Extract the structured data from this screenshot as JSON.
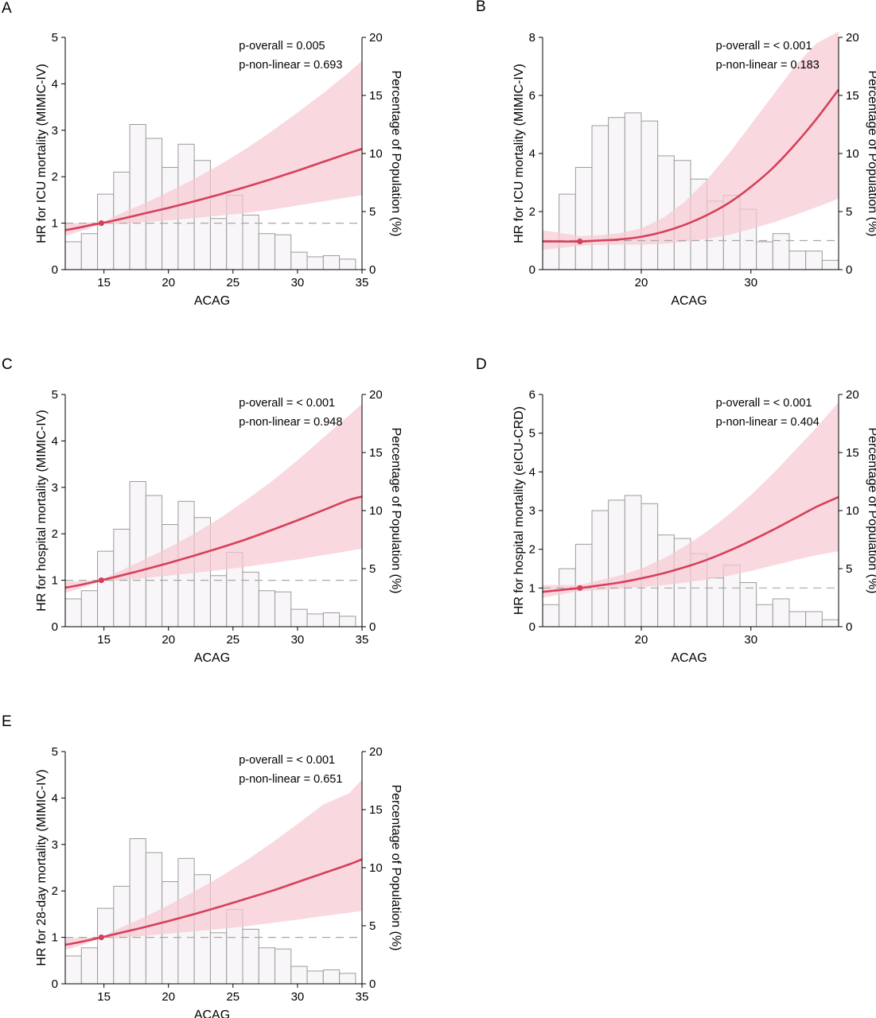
{
  "colors": {
    "curve": "#d6405a",
    "ci_band": "#f7c9d2",
    "bar_fill": "#f8f6f8",
    "bar_edge": "#9c9c9c",
    "reference": "#a8a8a8"
  },
  "chart_data": [
    {
      "panel": "A",
      "type": "bar",
      "title": "",
      "xlabel": "ACAG",
      "ylabel": "HR for ICU mortality (MIMIC-IV)",
      "y2label": "Percentage of Population (%)",
      "xlim": [
        12,
        35
      ],
      "ylim": [
        0,
        5
      ],
      "y2lim": [
        0,
        20
      ],
      "xticks": [
        15,
        20,
        25,
        30,
        35
      ],
      "yticks": [
        0,
        1,
        2,
        3,
        4,
        5
      ],
      "y2ticks": [
        0,
        5,
        10,
        15,
        20
      ],
      "annotations": [
        "p-overall = 0.005",
        "p-non-linear = 0.693"
      ],
      "reference_hr": 1,
      "ref_point": [
        14.8,
        1.0
      ],
      "histogram": {
        "bin_width": 1.25,
        "bin_start": 12,
        "percent": [
          2.4,
          3.1,
          6.5,
          8.4,
          12.5,
          11.3,
          8.8,
          10.8,
          9.4,
          4.4,
          6.4,
          4.7,
          3.1,
          3.0,
          1.5,
          1.1,
          1.2,
          0.9
        ]
      },
      "hr_curve": {
        "x": [
          12,
          13,
          14,
          14.8,
          16,
          18,
          20,
          22,
          24,
          26,
          28,
          30,
          32,
          34,
          35
        ],
        "hr": [
          0.85,
          0.9,
          0.96,
          1.0,
          1.07,
          1.2,
          1.33,
          1.47,
          1.62,
          1.78,
          1.95,
          2.13,
          2.32,
          2.51,
          2.6
        ],
        "lower": [
          0.73,
          0.81,
          0.9,
          1.0,
          0.98,
          1.02,
          1.06,
          1.11,
          1.16,
          1.22,
          1.29,
          1.38,
          1.47,
          1.56,
          1.6
        ],
        "upper": [
          1.0,
          1.0,
          1.02,
          1.0,
          1.17,
          1.41,
          1.67,
          1.95,
          2.26,
          2.6,
          2.98,
          3.38,
          3.8,
          4.25,
          4.5
        ]
      }
    },
    {
      "panel": "B",
      "type": "bar",
      "title": "",
      "xlabel": "ACAG",
      "ylabel": "HR for ICU mortality (MIMIC-IV)",
      "y2label": "Percentage of Population (%)",
      "xlim": [
        11,
        38
      ],
      "ylim": [
        0,
        8
      ],
      "y2lim": [
        0,
        20
      ],
      "xticks": [
        20,
        30
      ],
      "yticks": [
        0,
        2,
        4,
        6,
        8
      ],
      "y2ticks": [
        0,
        5,
        10,
        15,
        20
      ],
      "annotations": [
        "p-overall = < 0.001",
        "p-non-linear = 0.183"
      ],
      "reference_hr": 1,
      "ref_point": [
        14.4,
        0.97
      ],
      "histogram": {
        "bin_width": 1.5,
        "bin_start": 11,
        "percent": [
          2.5,
          6.5,
          8.8,
          12.4,
          13.1,
          13.5,
          12.8,
          9.8,
          9.4,
          7.8,
          5.9,
          6.4,
          5.2,
          2.4,
          3.1,
          1.6,
          1.6,
          0.8
        ]
      },
      "hr_curve": {
        "x": [
          11,
          12,
          14.4,
          16,
          18,
          20,
          22,
          24,
          26,
          28,
          30,
          32,
          34,
          36,
          38
        ],
        "hr": [
          0.97,
          0.97,
          0.97,
          1.0,
          1.04,
          1.13,
          1.3,
          1.55,
          1.88,
          2.3,
          2.85,
          3.5,
          4.3,
          5.2,
          6.2
        ],
        "lower": [
          0.68,
          0.72,
          0.82,
          0.85,
          0.86,
          0.86,
          0.89,
          0.96,
          1.06,
          1.2,
          1.4,
          1.62,
          1.88,
          2.15,
          2.45
        ],
        "upper": [
          1.35,
          1.3,
          1.15,
          1.18,
          1.25,
          1.42,
          1.78,
          2.35,
          3.1,
          4.0,
          5.0,
          6.0,
          7.0,
          7.8,
          8.2
        ]
      }
    },
    {
      "panel": "C",
      "type": "bar",
      "title": "",
      "xlabel": "ACAG",
      "ylabel": "HR for hospital mortality (MIMIC-IV)",
      "y2label": "Percentage of Population (%)",
      "xlim": [
        12,
        35
      ],
      "ylim": [
        0,
        5
      ],
      "y2lim": [
        0,
        20
      ],
      "xticks": [
        15,
        20,
        25,
        30,
        35
      ],
      "yticks": [
        0,
        1,
        2,
        3,
        4,
        5
      ],
      "y2ticks": [
        0,
        5,
        10,
        15,
        20
      ],
      "annotations": [
        "p-overall = < 0.001",
        "p-non-linear = 0.948"
      ],
      "reference_hr": 1,
      "ref_point": [
        14.8,
        1.0
      ],
      "histogram": {
        "bin_width": 1.25,
        "bin_start": 12,
        "percent": [
          2.4,
          3.1,
          6.5,
          8.4,
          12.5,
          11.3,
          8.8,
          10.8,
          9.4,
          4.4,
          6.4,
          4.7,
          3.1,
          3.0,
          1.5,
          1.1,
          1.2,
          0.9
        ]
      },
      "hr_curve": {
        "x": [
          12,
          13,
          14,
          14.8,
          16,
          18,
          20,
          22,
          24,
          26,
          28,
          30,
          32,
          34,
          35
        ],
        "hr": [
          0.84,
          0.89,
          0.95,
          1.0,
          1.08,
          1.22,
          1.37,
          1.53,
          1.7,
          1.88,
          2.08,
          2.29,
          2.51,
          2.73,
          2.8
        ],
        "lower": [
          0.73,
          0.81,
          0.9,
          1.0,
          0.99,
          1.04,
          1.1,
          1.16,
          1.22,
          1.29,
          1.37,
          1.45,
          1.54,
          1.63,
          1.68
        ],
        "upper": [
          0.97,
          0.98,
          1.0,
          1.0,
          1.17,
          1.43,
          1.7,
          2.0,
          2.34,
          2.72,
          3.13,
          3.58,
          4.07,
          4.55,
          4.8
        ]
      }
    },
    {
      "panel": "D",
      "type": "bar",
      "title": "",
      "xlabel": "ACAG",
      "ylabel": "HR for hospital mortality (eICU-CRD)",
      "y2label": "Percentage of Population (%)",
      "xlim": [
        11,
        38
      ],
      "ylim": [
        0,
        6
      ],
      "y2lim": [
        0,
        20
      ],
      "xticks": [
        20,
        30
      ],
      "yticks": [
        0,
        1,
        2,
        3,
        4,
        5,
        6
      ],
      "y2ticks": [
        0,
        5,
        10,
        15,
        20
      ],
      "annotations": [
        "p-overall = < 0.001",
        "p-non-linear = 0.404"
      ],
      "reference_hr": 1,
      "ref_point": [
        14.4,
        1.0
      ],
      "histogram": {
        "bin_width": 1.5,
        "bin_start": 11,
        "percent": [
          1.9,
          5.0,
          7.1,
          10.0,
          10.9,
          11.3,
          10.6,
          7.9,
          7.6,
          6.3,
          4.2,
          5.3,
          3.8,
          1.9,
          2.4,
          1.3,
          1.3,
          0.6
        ]
      },
      "hr_curve": {
        "x": [
          11,
          12,
          14.4,
          16,
          18,
          20,
          22,
          24,
          26,
          28,
          30,
          32,
          34,
          36,
          38
        ],
        "hr": [
          0.9,
          0.93,
          1.0,
          1.06,
          1.14,
          1.25,
          1.38,
          1.54,
          1.73,
          1.96,
          2.22,
          2.5,
          2.8,
          3.1,
          3.35
        ],
        "lower": [
          0.75,
          0.8,
          0.92,
          0.94,
          0.98,
          1.02,
          1.07,
          1.14,
          1.22,
          1.32,
          1.44,
          1.58,
          1.72,
          1.85,
          1.95
        ],
        "upper": [
          1.08,
          1.08,
          1.08,
          1.19,
          1.32,
          1.5,
          1.76,
          2.08,
          2.46,
          2.9,
          3.4,
          3.95,
          4.55,
          5.15,
          5.8
        ]
      }
    },
    {
      "panel": "E",
      "type": "bar",
      "title": "",
      "xlabel": "ACAG",
      "ylabel": "HR for 28-day mortality (MIMIC-IV)",
      "y2label": "Percentage of Population (%)",
      "xlim": [
        12,
        35
      ],
      "ylim": [
        0,
        5
      ],
      "y2lim": [
        0,
        20
      ],
      "xticks": [
        15,
        20,
        25,
        30,
        35
      ],
      "yticks": [
        0,
        1,
        2,
        3,
        4,
        5
      ],
      "y2ticks": [
        0,
        5,
        10,
        15,
        20
      ],
      "annotations": [
        "p-overall = < 0.001",
        "p-non-linear = 0.651"
      ],
      "reference_hr": 1,
      "ref_point": [
        14.8,
        1.0
      ],
      "histogram": {
        "bin_width": 1.25,
        "bin_start": 12,
        "percent": [
          2.4,
          3.1,
          6.5,
          8.4,
          12.5,
          11.3,
          8.8,
          10.8,
          9.4,
          4.4,
          6.4,
          4.7,
          3.1,
          3.0,
          1.5,
          1.1,
          1.2,
          0.9
        ]
      },
      "hr_curve": {
        "x": [
          12,
          13,
          14,
          14.8,
          16,
          18,
          20,
          22,
          24,
          26,
          28,
          30,
          32,
          34,
          35
        ],
        "hr": [
          0.84,
          0.89,
          0.95,
          1.0,
          1.08,
          1.21,
          1.35,
          1.5,
          1.66,
          1.83,
          2.0,
          2.19,
          2.38,
          2.57,
          2.68
        ],
        "lower": [
          0.73,
          0.81,
          0.9,
          1.0,
          0.98,
          1.03,
          1.08,
          1.13,
          1.18,
          1.24,
          1.31,
          1.38,
          1.46,
          1.53,
          1.57
        ],
        "upper": [
          0.98,
          0.99,
          1.0,
          1.0,
          1.17,
          1.42,
          1.69,
          1.99,
          2.3,
          2.65,
          3.03,
          3.44,
          3.86,
          4.1,
          4.4
        ]
      }
    }
  ]
}
